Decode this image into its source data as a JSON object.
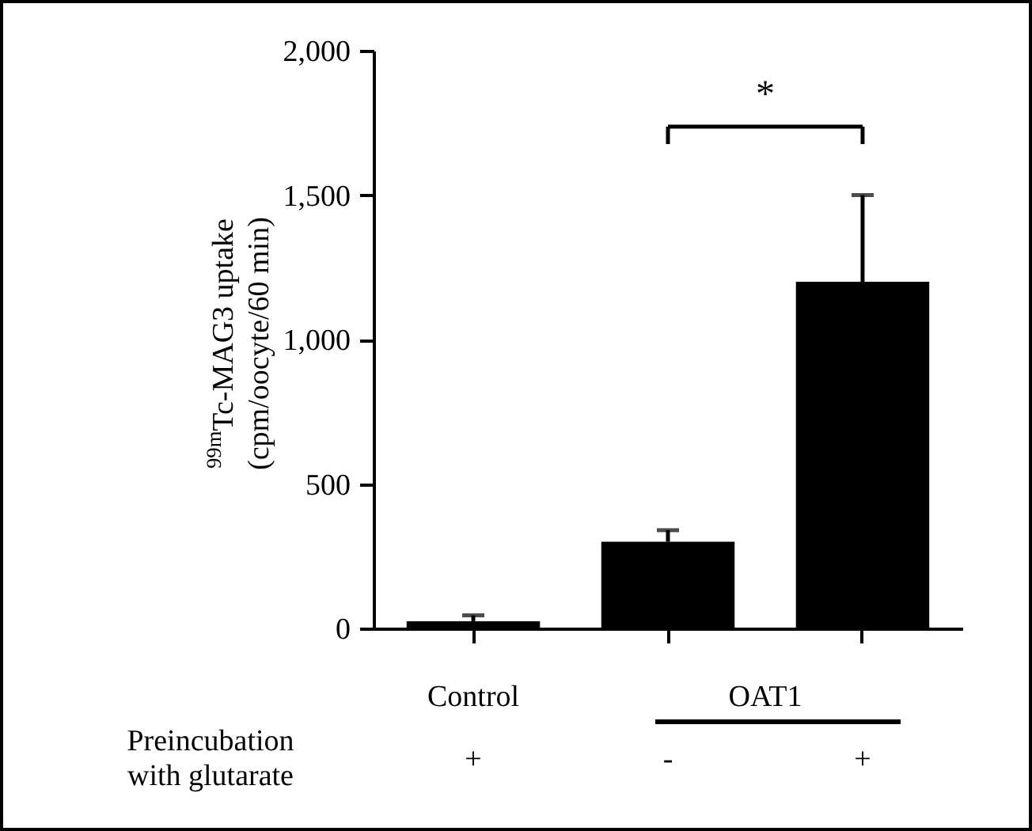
{
  "chart_data": {
    "type": "bar",
    "ylabel": "$^{99m}$Tc-MAG3 uptake\n(cpm/oocyte/60 min)",
    "categories": [
      "+",
      "-",
      "+"
    ],
    "values": [
      25,
      300,
      1200
    ],
    "colors": [
      "#000000",
      "#000000",
      "#000000"
    ],
    "errors": [
      [
        25,
        45
      ],
      [
        300,
        340
      ],
      [
        1200,
        1500
      ]
    ],
    "ylim": [
      0,
      2000
    ],
    "yticks": [
      0,
      500,
      {
        "value": 1000,
        "label": "1,000"
      },
      {
        "value": 1500,
        "label": "1,500"
      },
      {
        "value": 2000,
        "label": "2,000"
      }
    ],
    "annotations": [
      "*",
      "Control",
      "OAT1",
      "Preincubation\nwith glutarate"
    ]
  }
}
